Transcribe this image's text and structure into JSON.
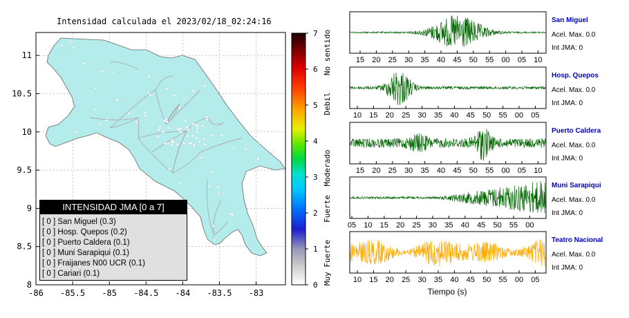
{
  "map": {
    "title": "Intensidad calculada el 2023/02/18_02:24:16",
    "x_ticks": [
      "-86",
      "-85.5",
      "-85",
      "-84.5",
      "-84",
      "-83.5",
      "-83"
    ],
    "y_ticks": [
      "11",
      "10.5",
      "10",
      "9.5",
      "9",
      "8.5",
      "8"
    ],
    "fill_color": "#b4ecec"
  },
  "colorbar": {
    "ticks": [
      "7",
      "6",
      "5",
      "4",
      "3",
      "2",
      "1",
      "0"
    ],
    "labels": [
      "Muy Fuerte",
      "Fuerte",
      "Moderado",
      "Debil",
      "No sentido"
    ]
  },
  "legend": {
    "header": "INTENSIDAD JMA [0 a 7]",
    "items": [
      {
        "jma": "[ 0 ]",
        "name": "San Miguel (0.3)"
      },
      {
        "jma": "[ 0 ]",
        "name": "Hosp. Quepos (0.2)"
      },
      {
        "jma": "[ 0 ]",
        "name": "Puerto Caldera (0.1)"
      },
      {
        "jma": "[ 0 ]",
        "name": "Muni Sarapiqui (0.1)"
      },
      {
        "jma": "[ 0 ]",
        "name": "Fraijanes N00 UCR (0.1)"
      },
      {
        "jma": "[ 0 ]",
        "name": "Cariari (0.1)"
      }
    ]
  },
  "chart_data": [
    {
      "type": "scatter",
      "title": "Intensidad calculada el 2023/02/18_02:24:16",
      "xlim": [
        -86,
        -82.6
      ],
      "ylim": [
        8,
        11.3
      ],
      "x_ticks": [
        -86,
        -85.5,
        -85,
        -84.5,
        -84,
        -83.5,
        -83
      ],
      "y_ticks": [
        11,
        10.5,
        10,
        9.5,
        9,
        8.5,
        8
      ],
      "grid": true,
      "colorbar": {
        "min": 0,
        "max": 7,
        "labels": [
          "No sentido",
          "Debil",
          "Moderado",
          "Fuerte",
          "Muy Fuerte"
        ]
      }
    },
    {
      "type": "line",
      "xlabel": "Tiempo (s)",
      "traces": [
        {
          "name": "San Miguel",
          "accel": "Acel. Max. 0.0",
          "int": "Int JMA: 0",
          "color": "#006600",
          "ticks": [
            "15",
            "20",
            "25",
            "30",
            "35",
            "40",
            "45",
            "50",
            "55",
            "00",
            "05",
            "10"
          ],
          "first_tick": 15
        },
        {
          "name": "Hosp. Quepos",
          "accel": "Acel. Max. 0.0",
          "int": "Int JMA: 0",
          "color": "#006600",
          "ticks": [
            "10",
            "15",
            "20",
            "25",
            "30",
            "35",
            "40",
            "45",
            "50",
            "55",
            "00",
            "05"
          ],
          "first_tick": 10
        },
        {
          "name": "Puerto Caldera",
          "accel": "Acel. Max. 0.0",
          "int": "Int JMA: 0",
          "color": "#006600",
          "ticks": [
            "15",
            "20",
            "25",
            "30",
            "35",
            "40",
            "45",
            "50",
            "55",
            "00",
            "05",
            "10"
          ],
          "first_tick": 15
        },
        {
          "name": "Muni Sarapiqui",
          "accel": "Acel. Max. 0.0",
          "int": "Int JMA: 0",
          "color": "#006600",
          "ticks": [
            "05",
            "10",
            "15",
            "20",
            "25",
            "30",
            "35",
            "40",
            "45",
            "50",
            "55",
            "00"
          ],
          "first_tick": 5
        },
        {
          "name": "Teatro Nacional",
          "accel": "Acel. Max. 0.0",
          "int": "Int JMA: 0",
          "color": "#ffaa00",
          "ticks": [
            "10",
            "15",
            "20",
            "25",
            "30",
            "35",
            "40",
            "45",
            "50",
            "55",
            "00",
            "05"
          ],
          "first_tick": 10
        }
      ]
    }
  ]
}
